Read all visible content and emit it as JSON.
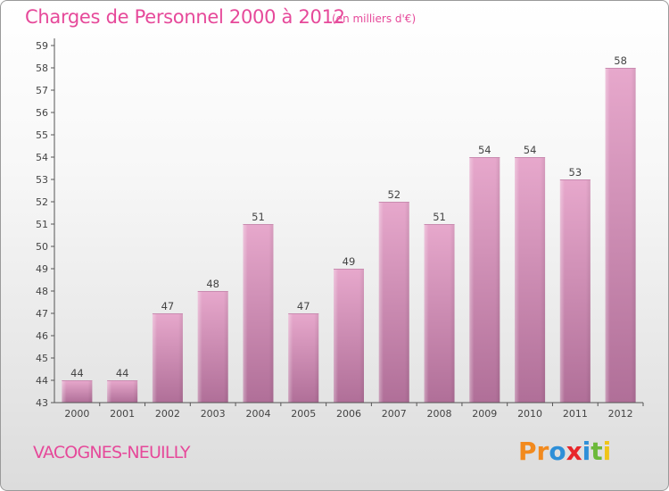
{
  "header": {
    "title": "Charges de Personnel 2000 à 2012",
    "subtitle": "(en milliers d'€)"
  },
  "footer": {
    "commune": "VACOGNES-NEUILLY",
    "logo_text": "Proxiti",
    "logo_letters": [
      {
        "ch": "P",
        "color": "#f28a1e"
      },
      {
        "ch": "r",
        "color": "#f28a1e"
      },
      {
        "ch": "o",
        "color": "#2e8fd8"
      },
      {
        "ch": "x",
        "color": "#e8262b"
      },
      {
        "ch": "i",
        "color": "#2e8fd8"
      },
      {
        "ch": "t",
        "color": "#6cb93a"
      },
      {
        "ch": "i",
        "color": "#f0c419"
      }
    ]
  },
  "colors": {
    "accent": "#e6499a",
    "bar_top": "#e7a8cc",
    "bar_bottom": "#b06f98",
    "axis": "#555555"
  },
  "chart_data": {
    "type": "bar",
    "title": "Charges de Personnel 2000 à 2012",
    "categories": [
      "2000",
      "2001",
      "2002",
      "2003",
      "2004",
      "2005",
      "2006",
      "2007",
      "2008",
      "2009",
      "2010",
      "2011",
      "2012"
    ],
    "values": [
      44,
      44,
      47,
      48,
      51,
      47,
      49,
      52,
      51,
      54,
      54,
      53,
      58
    ],
    "ylim": [
      43,
      59
    ],
    "yticks": [
      43,
      44,
      45,
      46,
      47,
      48,
      49,
      50,
      51,
      52,
      53,
      54,
      55,
      56,
      57,
      58,
      59
    ],
    "grid": false,
    "data_labels": true
  }
}
